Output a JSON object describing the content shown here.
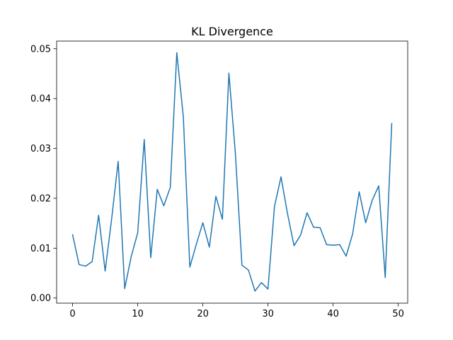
{
  "chart_data": {
    "type": "line",
    "title": "KL Divergence",
    "xlabel": "",
    "ylabel": "",
    "xlim": [
      -2.45,
      51.45
    ],
    "ylim": [
      -0.00103,
      0.05153
    ],
    "x_ticks": [
      0,
      10,
      20,
      30,
      40,
      50
    ],
    "y_ticks": [
      0.0,
      0.01,
      0.02,
      0.03,
      0.04,
      0.05
    ],
    "x_tick_labels": [
      "0",
      "10",
      "20",
      "30",
      "40",
      "50"
    ],
    "y_tick_labels": [
      "0.00",
      "0.01",
      "0.02",
      "0.03",
      "0.04",
      "0.05"
    ],
    "grid": false,
    "legend": false,
    "series": [
      {
        "color": "#1f77b4",
        "x": [
          0,
          1,
          2,
          3,
          4,
          5,
          6,
          7,
          8,
          9,
          10,
          11,
          12,
          13,
          14,
          15,
          16,
          17,
          18,
          19,
          20,
          21,
          22,
          23,
          24,
          25,
          26,
          27,
          28,
          29,
          30,
          31,
          32,
          33,
          34,
          35,
          36,
          37,
          38,
          39,
          40,
          41,
          42,
          43,
          44,
          45,
          46,
          47,
          48,
          49
        ],
        "values": [
          0.0127,
          0.0067,
          0.0064,
          0.0073,
          0.0166,
          0.0054,
          0.0159,
          0.0274,
          0.0019,
          0.0083,
          0.0131,
          0.0318,
          0.0081,
          0.0218,
          0.0185,
          0.0222,
          0.0492,
          0.0364,
          0.0062,
          0.0108,
          0.0151,
          0.0102,
          0.0204,
          0.0158,
          0.0451,
          0.0289,
          0.0066,
          0.0056,
          0.0014,
          0.0031,
          0.0018,
          0.0184,
          0.0243,
          0.0169,
          0.0105,
          0.0126,
          0.0171,
          0.0142,
          0.0141,
          0.0107,
          0.0106,
          0.0107,
          0.0084,
          0.0129,
          0.0213,
          0.0151,
          0.0196,
          0.0225,
          0.0041,
          0.035
        ]
      }
    ]
  }
}
